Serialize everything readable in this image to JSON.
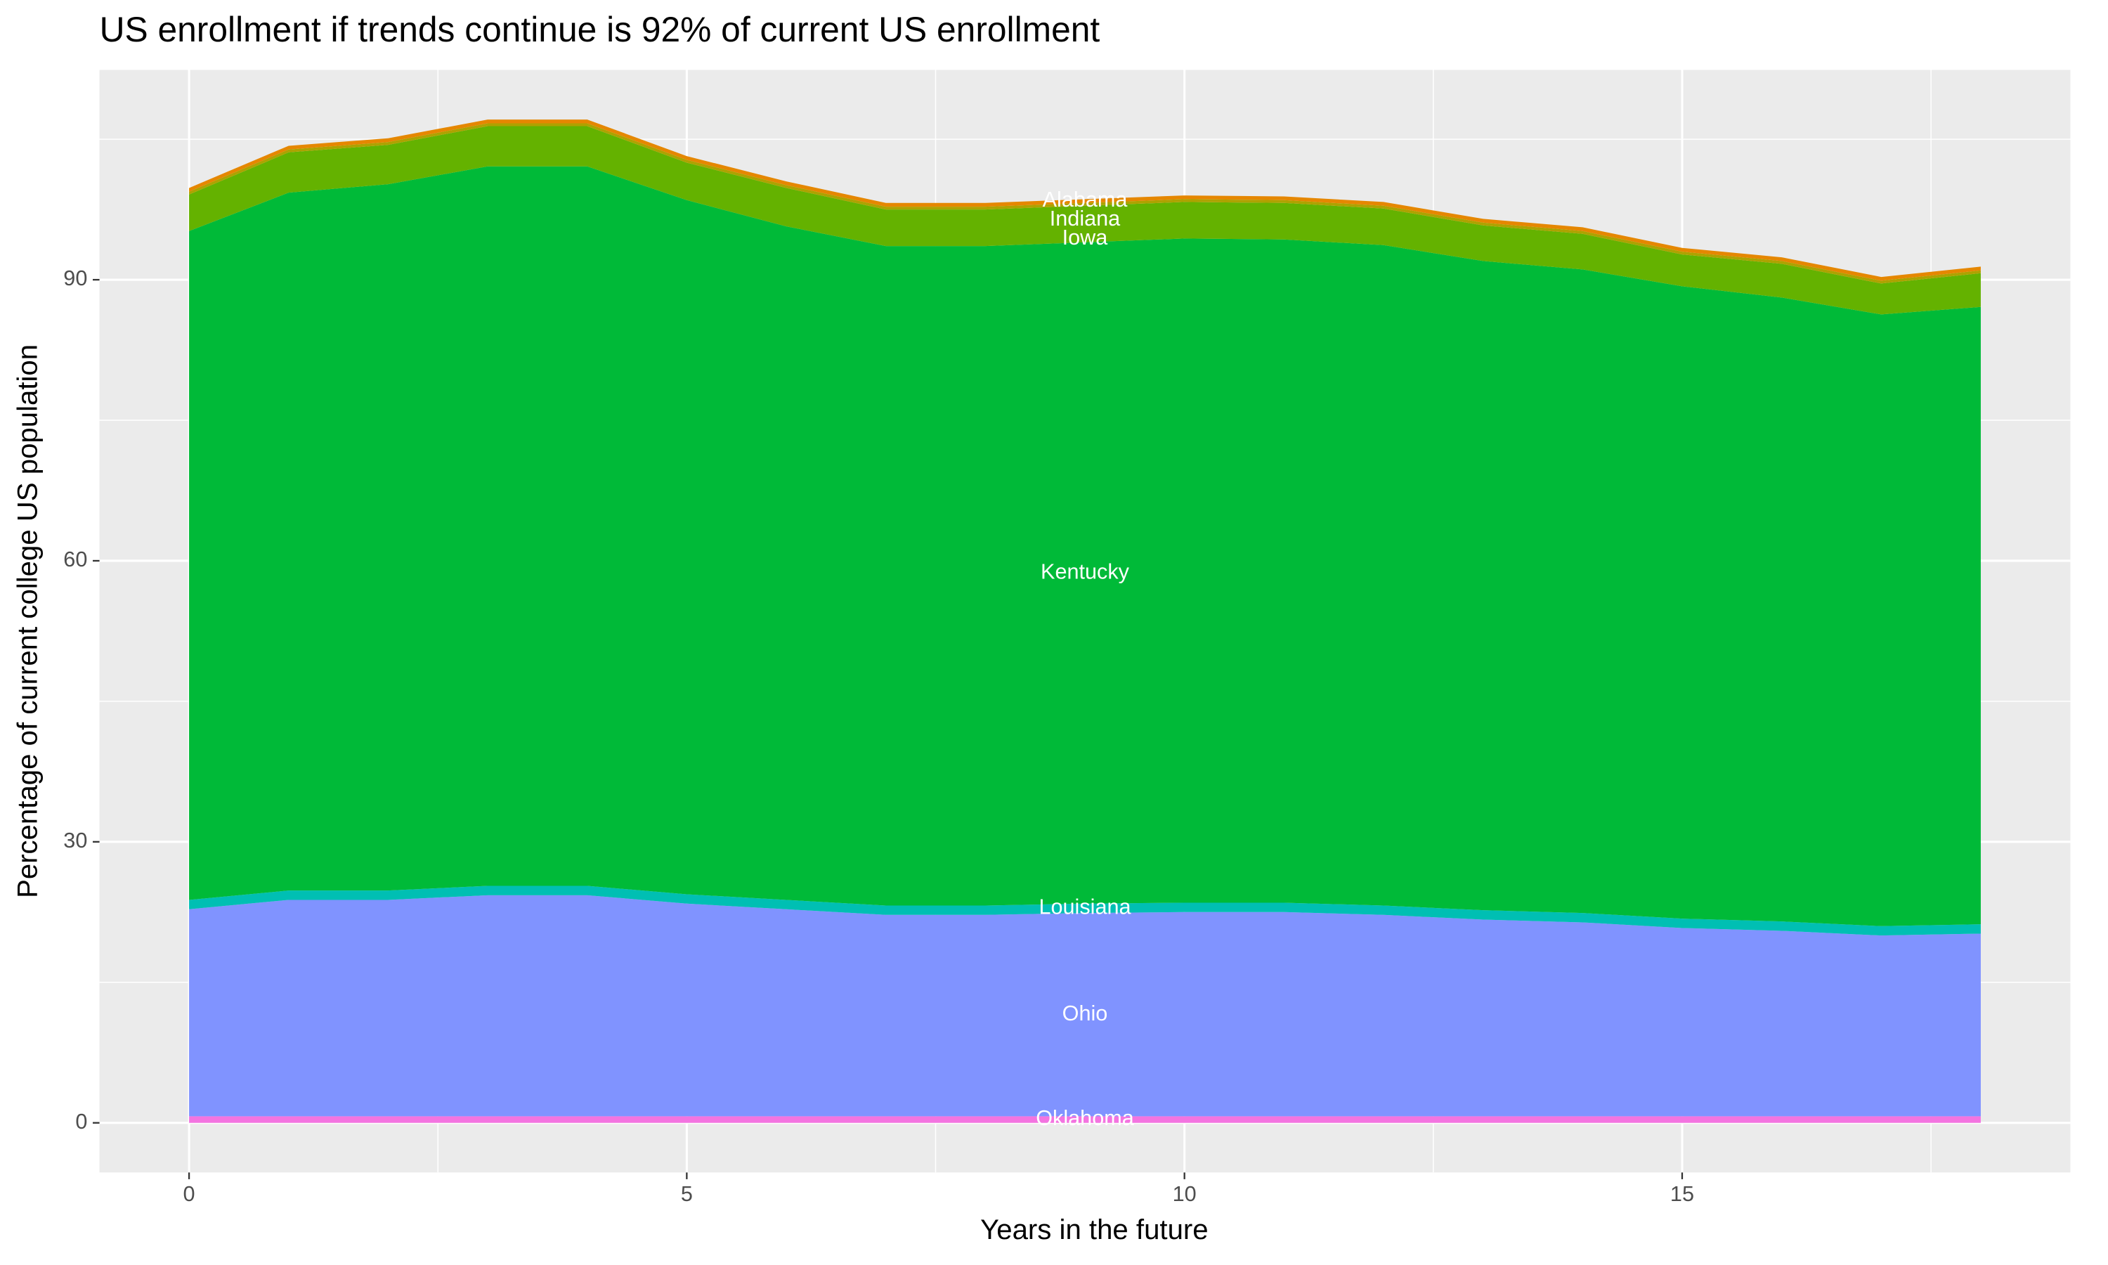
{
  "chart_data": {
    "type": "stacked-area",
    "title": "US enrollment if trends continue is 92% of current US enrollment",
    "xlabel": "Years in the future",
    "ylabel": "Percentage of current college US population",
    "x": [
      0,
      1,
      2,
      3,
      4,
      5,
      6,
      7,
      8,
      9,
      10,
      11,
      12,
      13,
      14,
      15,
      16,
      17,
      18
    ],
    "series": [
      {
        "name": "Oklahoma",
        "color": "#F374E0",
        "values": [
          0.7,
          0.7,
          0.7,
          0.7,
          0.7,
          0.7,
          0.7,
          0.7,
          0.7,
          0.7,
          0.7,
          0.7,
          0.7,
          0.7,
          0.7,
          0.7,
          0.7,
          0.7,
          0.7
        ]
      },
      {
        "name": "Ohio",
        "color": "#8093FF",
        "values": [
          22.1,
          23.1,
          23.1,
          23.6,
          23.6,
          22.7,
          22.1,
          21.5,
          21.5,
          21.7,
          21.8,
          21.8,
          21.5,
          21.0,
          20.7,
          20.1,
          19.8,
          19.3,
          19.5
        ]
      },
      {
        "name": "Louisiana",
        "color": "#00BFB3",
        "values": [
          1.0,
          1.0,
          1.0,
          1.0,
          1.0,
          1.0,
          1.0,
          1.0,
          1.0,
          1.0,
          1.0,
          1.0,
          1.0,
          1.0,
          1.0,
          1.0,
          1.0,
          1.0,
          1.0
        ]
      },
      {
        "name": "Kentucky",
        "color": "#00BA38",
        "values": [
          71.4,
          74.5,
          75.4,
          76.8,
          76.8,
          74.1,
          71.9,
          70.4,
          70.4,
          70.6,
          70.9,
          70.8,
          70.5,
          69.3,
          68.7,
          67.5,
          66.6,
          65.3,
          65.9
        ]
      },
      {
        "name": "Iowa",
        "color": "#64B200",
        "values": [
          3.9,
          4.3,
          4.2,
          4.3,
          4.3,
          4.0,
          4.1,
          3.9,
          3.9,
          3.9,
          3.9,
          3.9,
          3.9,
          3.8,
          3.8,
          3.4,
          3.6,
          3.3,
          3.6
        ]
      },
      {
        "name": "Indiana",
        "color": "#AEA200",
        "values": [
          0.3,
          0.3,
          0.3,
          0.3,
          0.3,
          0.3,
          0.3,
          0.3,
          0.3,
          0.3,
          0.3,
          0.3,
          0.3,
          0.3,
          0.3,
          0.3,
          0.3,
          0.3,
          0.3
        ]
      },
      {
        "name": "Alabama",
        "color": "#E58700",
        "values": [
          0.4,
          0.4,
          0.4,
          0.4,
          0.4,
          0.4,
          0.4,
          0.4,
          0.4,
          0.4,
          0.4,
          0.4,
          0.4,
          0.4,
          0.4,
          0.4,
          0.4,
          0.4,
          0.4
        ]
      }
    ],
    "label_at": 9,
    "xlim": [
      -0.9,
      18.9
    ],
    "ylim": [
      -5.3,
      112.4
    ],
    "xticks": [
      0,
      5,
      10,
      15
    ],
    "yticks": [
      0,
      30,
      60,
      90
    ],
    "xminor": [
      2.5,
      7.5,
      12.5,
      17.5
    ],
    "yminor": [
      15,
      45,
      75,
      105
    ],
    "grid": true
  }
}
